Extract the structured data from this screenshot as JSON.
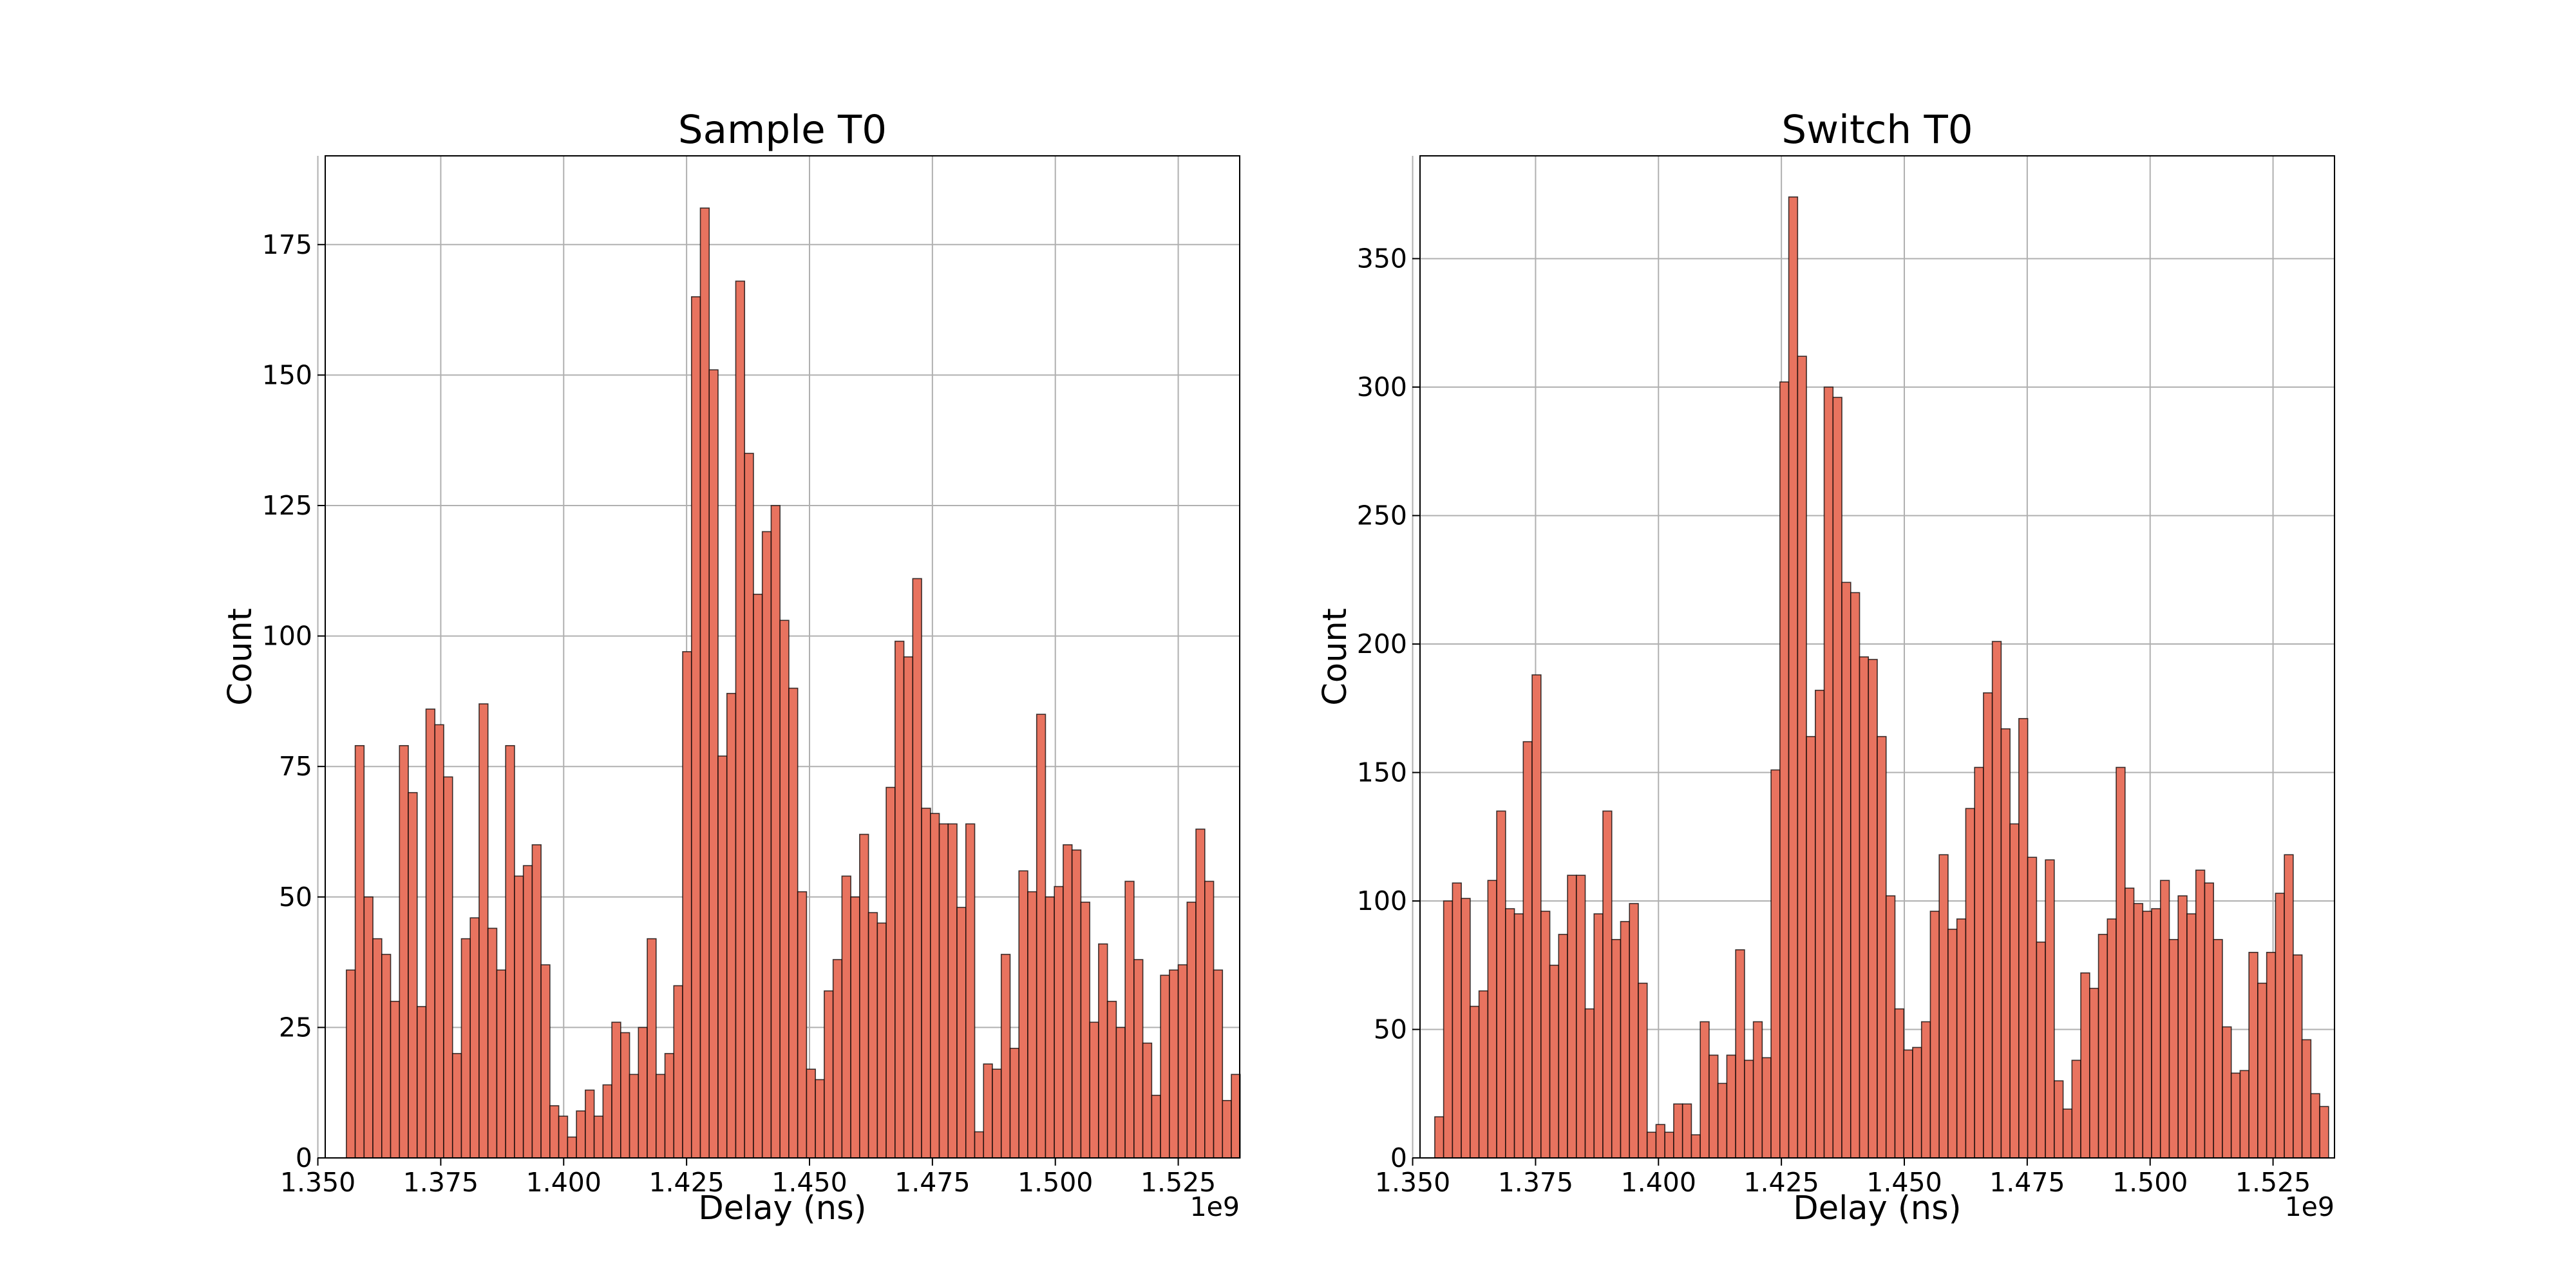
{
  "chart_data": [
    {
      "type": "bar",
      "title": "Sample T0",
      "xlabel": "Delay (ns)",
      "ylabel": "Count",
      "x_offset_label": "1e9",
      "xlim": [
        1.3515,
        1.5375
      ],
      "ylim": [
        0,
        192
      ],
      "xticks": [
        "1.350",
        "1.375",
        "1.400",
        "1.425",
        "1.450",
        "1.475",
        "1.500",
        "1.525"
      ],
      "yticks": [
        "0",
        "25",
        "50",
        "75",
        "100",
        "125",
        "150",
        "175"
      ],
      "grid": true,
      "bar_color": "#e8735f",
      "bin_start": 1.3558,
      "bin_width": 0.0018,
      "values": [
        36,
        79,
        50,
        42,
        39,
        30,
        79,
        70,
        29,
        86,
        83,
        73,
        20,
        42,
        46,
        87,
        44,
        36,
        79,
        54,
        56,
        60,
        37,
        10,
        8,
        4,
        9,
        13,
        8,
        14,
        26,
        24,
        16,
        25,
        42,
        16,
        20,
        33,
        97,
        165,
        182,
        151,
        77,
        89,
        168,
        135,
        108,
        120,
        125,
        103,
        90,
        51,
        17,
        15,
        32,
        38,
        54,
        50,
        62,
        47,
        45,
        71,
        99,
        96,
        111,
        67,
        66,
        64,
        64,
        48,
        64,
        5,
        18,
        17,
        39,
        21,
        55,
        51,
        85,
        50,
        52,
        60,
        59,
        49,
        26,
        41,
        30,
        25,
        53,
        38,
        22,
        12,
        35,
        36,
        37,
        49,
        63,
        53,
        36,
        11,
        16
      ]
    },
    {
      "type": "bar",
      "title": "Switch T0",
      "xlabel": "Delay (ns)",
      "ylabel": "Count",
      "x_offset_label": "1e9",
      "xlim": [
        1.3515,
        1.5375
      ],
      "ylim": [
        0,
        390
      ],
      "xticks": [
        "1.350",
        "1.375",
        "1.400",
        "1.425",
        "1.450",
        "1.475",
        "1.500",
        "1.525"
      ],
      "yticks": [
        "0",
        "50",
        "100",
        "150",
        "200",
        "250",
        "300",
        "350"
      ],
      "grid": true,
      "bar_color": "#e8735f",
      "bin_start": 1.3545,
      "bin_width": 0.0018,
      "values": [
        16,
        100,
        107,
        101,
        59,
        65,
        108,
        135,
        97,
        95,
        162,
        188,
        96,
        75,
        87,
        110,
        110,
        58,
        95,
        135,
        85,
        92,
        99,
        68,
        10,
        13,
        10,
        21,
        21,
        9,
        53,
        40,
        29,
        40,
        81,
        38,
        53,
        39,
        151,
        302,
        374,
        312,
        164,
        182,
        300,
        296,
        224,
        220,
        195,
        194,
        164,
        102,
        58,
        42,
        43,
        53,
        96,
        118,
        89,
        93,
        136,
        152,
        181,
        201,
        167,
        130,
        171,
        117,
        84,
        116,
        30,
        19,
        38,
        72,
        66,
        87,
        93,
        152,
        105,
        99,
        96,
        97,
        108,
        85,
        102,
        95,
        112,
        107,
        85,
        51,
        33,
        34,
        80,
        68,
        80,
        103,
        118,
        79,
        46,
        25,
        20
      ]
    }
  ]
}
